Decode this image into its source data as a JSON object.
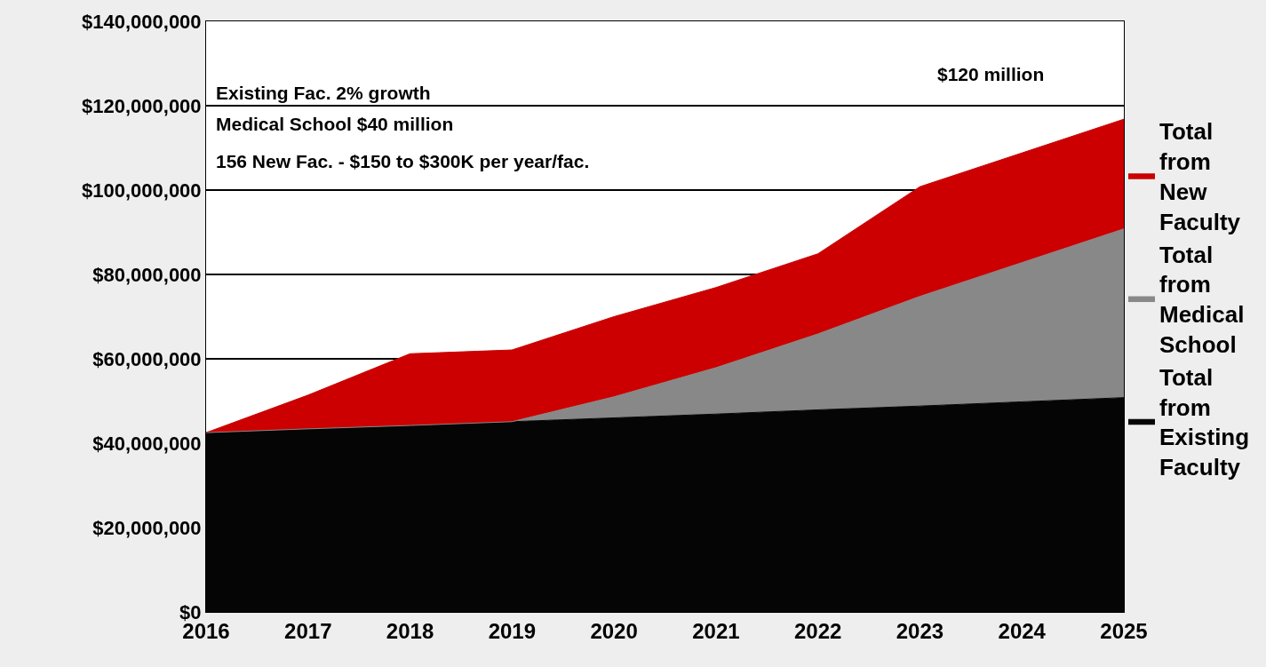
{
  "chart_data": {
    "type": "area",
    "stacked": true,
    "categories": [
      "2016",
      "2017",
      "2018",
      "2019",
      "2020",
      "2021",
      "2022",
      "2023",
      "2024",
      "2025"
    ],
    "series": [
      {
        "name": "Total from Existing Faculty",
        "color": "#050505",
        "values": [
          42500000,
          43400000,
          44200000,
          45100000,
          46000000,
          46900000,
          47900000,
          48800000,
          49800000,
          50800000
        ]
      },
      {
        "name": "Total from Medical School",
        "color": "#888888",
        "values": [
          0,
          0,
          0,
          0,
          5000000,
          11000000,
          18000000,
          26000000,
          33000000,
          40000000
        ]
      },
      {
        "name": "Total from New Faculty",
        "color": "#cc0000",
        "values": [
          0,
          8000000,
          17000000,
          17000000,
          19000000,
          19000000,
          19000000,
          26000000,
          26000000,
          26000000
        ]
      }
    ],
    "ylim": [
      0,
      140000000
    ],
    "yticks": [
      {
        "value": 0,
        "label": "$0"
      },
      {
        "value": 20000000,
        "label": "$20,000,000"
      },
      {
        "value": 40000000,
        "label": "$40,000,000"
      },
      {
        "value": 60000000,
        "label": "$60,000,000"
      },
      {
        "value": 80000000,
        "label": "$80,000,000"
      },
      {
        "value": 100000000,
        "label": "$100,000,000"
      },
      {
        "value": 120000000,
        "label": "$120,000,000"
      },
      {
        "value": 140000000,
        "label": "$140,000,000"
      }
    ],
    "grid": "y",
    "legend": "right",
    "annotations": [
      "Existing Fac. 2% growth",
      "Medical School $40 million",
      "156 New Fac. - $150 to $300K per year/fac.",
      "$120 million"
    ]
  }
}
